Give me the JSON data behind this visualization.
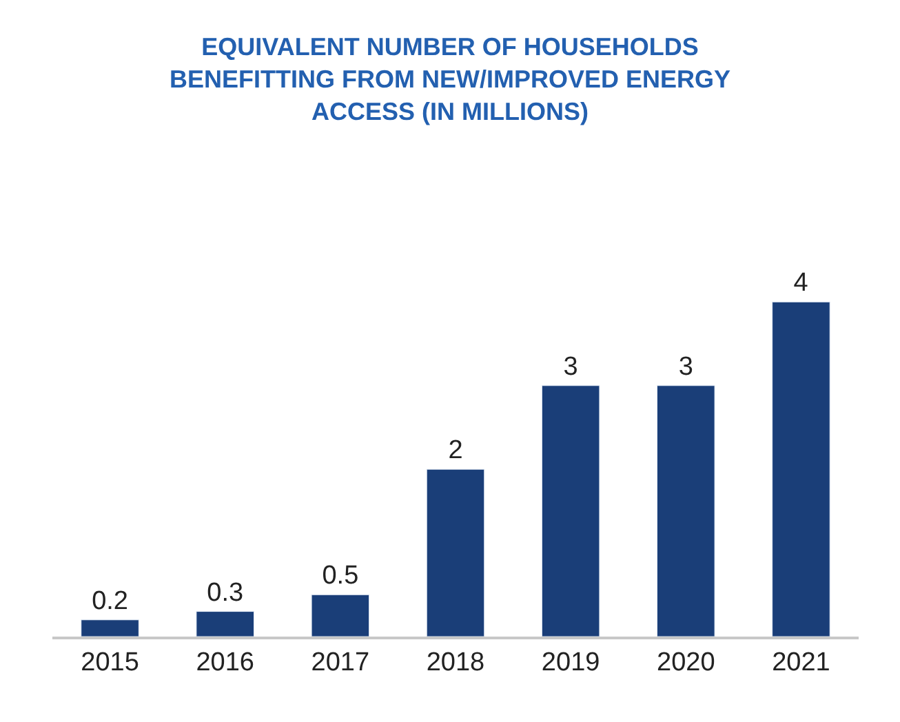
{
  "chart_data": {
    "type": "bar",
    "title": "EQUIVALENT NUMBER OF HOUSEHOLDS\nBENEFITTING FROM NEW/IMPROVED ENERGY\nACCESS (IN MILLIONS)",
    "categories": [
      "2015",
      "2016",
      "2017",
      "2018",
      "2019",
      "2020",
      "2021"
    ],
    "values": [
      0.2,
      0.3,
      0.5,
      2,
      3,
      3,
      4
    ],
    "color": "#1a3e78",
    "data_labels": true
  }
}
